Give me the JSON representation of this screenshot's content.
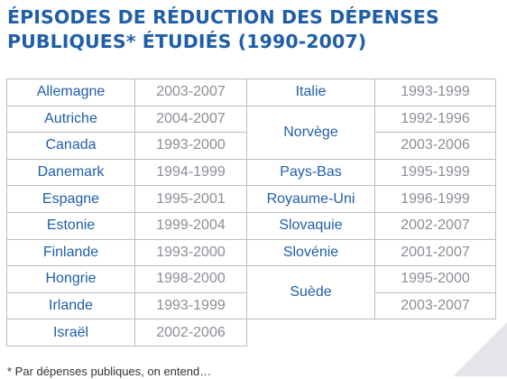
{
  "title": {
    "line1": "ÉPISODES DE RÉDUCTION DES DÉPENSES",
    "line2": "PUBLIQUES* ÉTUDIÉS (1990-2007)"
  },
  "table": {
    "left": [
      {
        "country": "Allemagne",
        "period": "2003-2007"
      },
      {
        "country": "Autriche",
        "period": "2004-2007"
      },
      {
        "country": "Canada",
        "period": "1993-2000"
      },
      {
        "country": "Danemark",
        "period": "1994-1999"
      },
      {
        "country": "Espagne",
        "period": "1995-2001"
      },
      {
        "country": "Estonie",
        "period": "1999-2004"
      },
      {
        "country": "Finlande",
        "period": "1993-2000"
      },
      {
        "country": "Hongrie",
        "period": "1998-2000"
      },
      {
        "country": "Irlande",
        "period": "1993-1999"
      },
      {
        "country": "Israël",
        "period": "2002-2006"
      }
    ],
    "right": [
      {
        "country": "Italie",
        "periods": [
          "1993-1999"
        ]
      },
      {
        "country": "Norvège",
        "periods": [
          "1992-1996",
          "2003-2006"
        ]
      },
      {
        "country": "Pays-Bas",
        "periods": [
          "1995-1999"
        ]
      },
      {
        "country": "Royaume-Uni",
        "periods": [
          "1996-1999"
        ]
      },
      {
        "country": "Slovaquie",
        "periods": [
          "2002-2007"
        ]
      },
      {
        "country": "Slovénie",
        "periods": [
          "2001-2007"
        ]
      },
      {
        "country": "Suède",
        "periods": [
          "1995-2000",
          "2003-2007"
        ]
      }
    ]
  },
  "footnote": "* Par dépenses publiques, on entend…"
}
